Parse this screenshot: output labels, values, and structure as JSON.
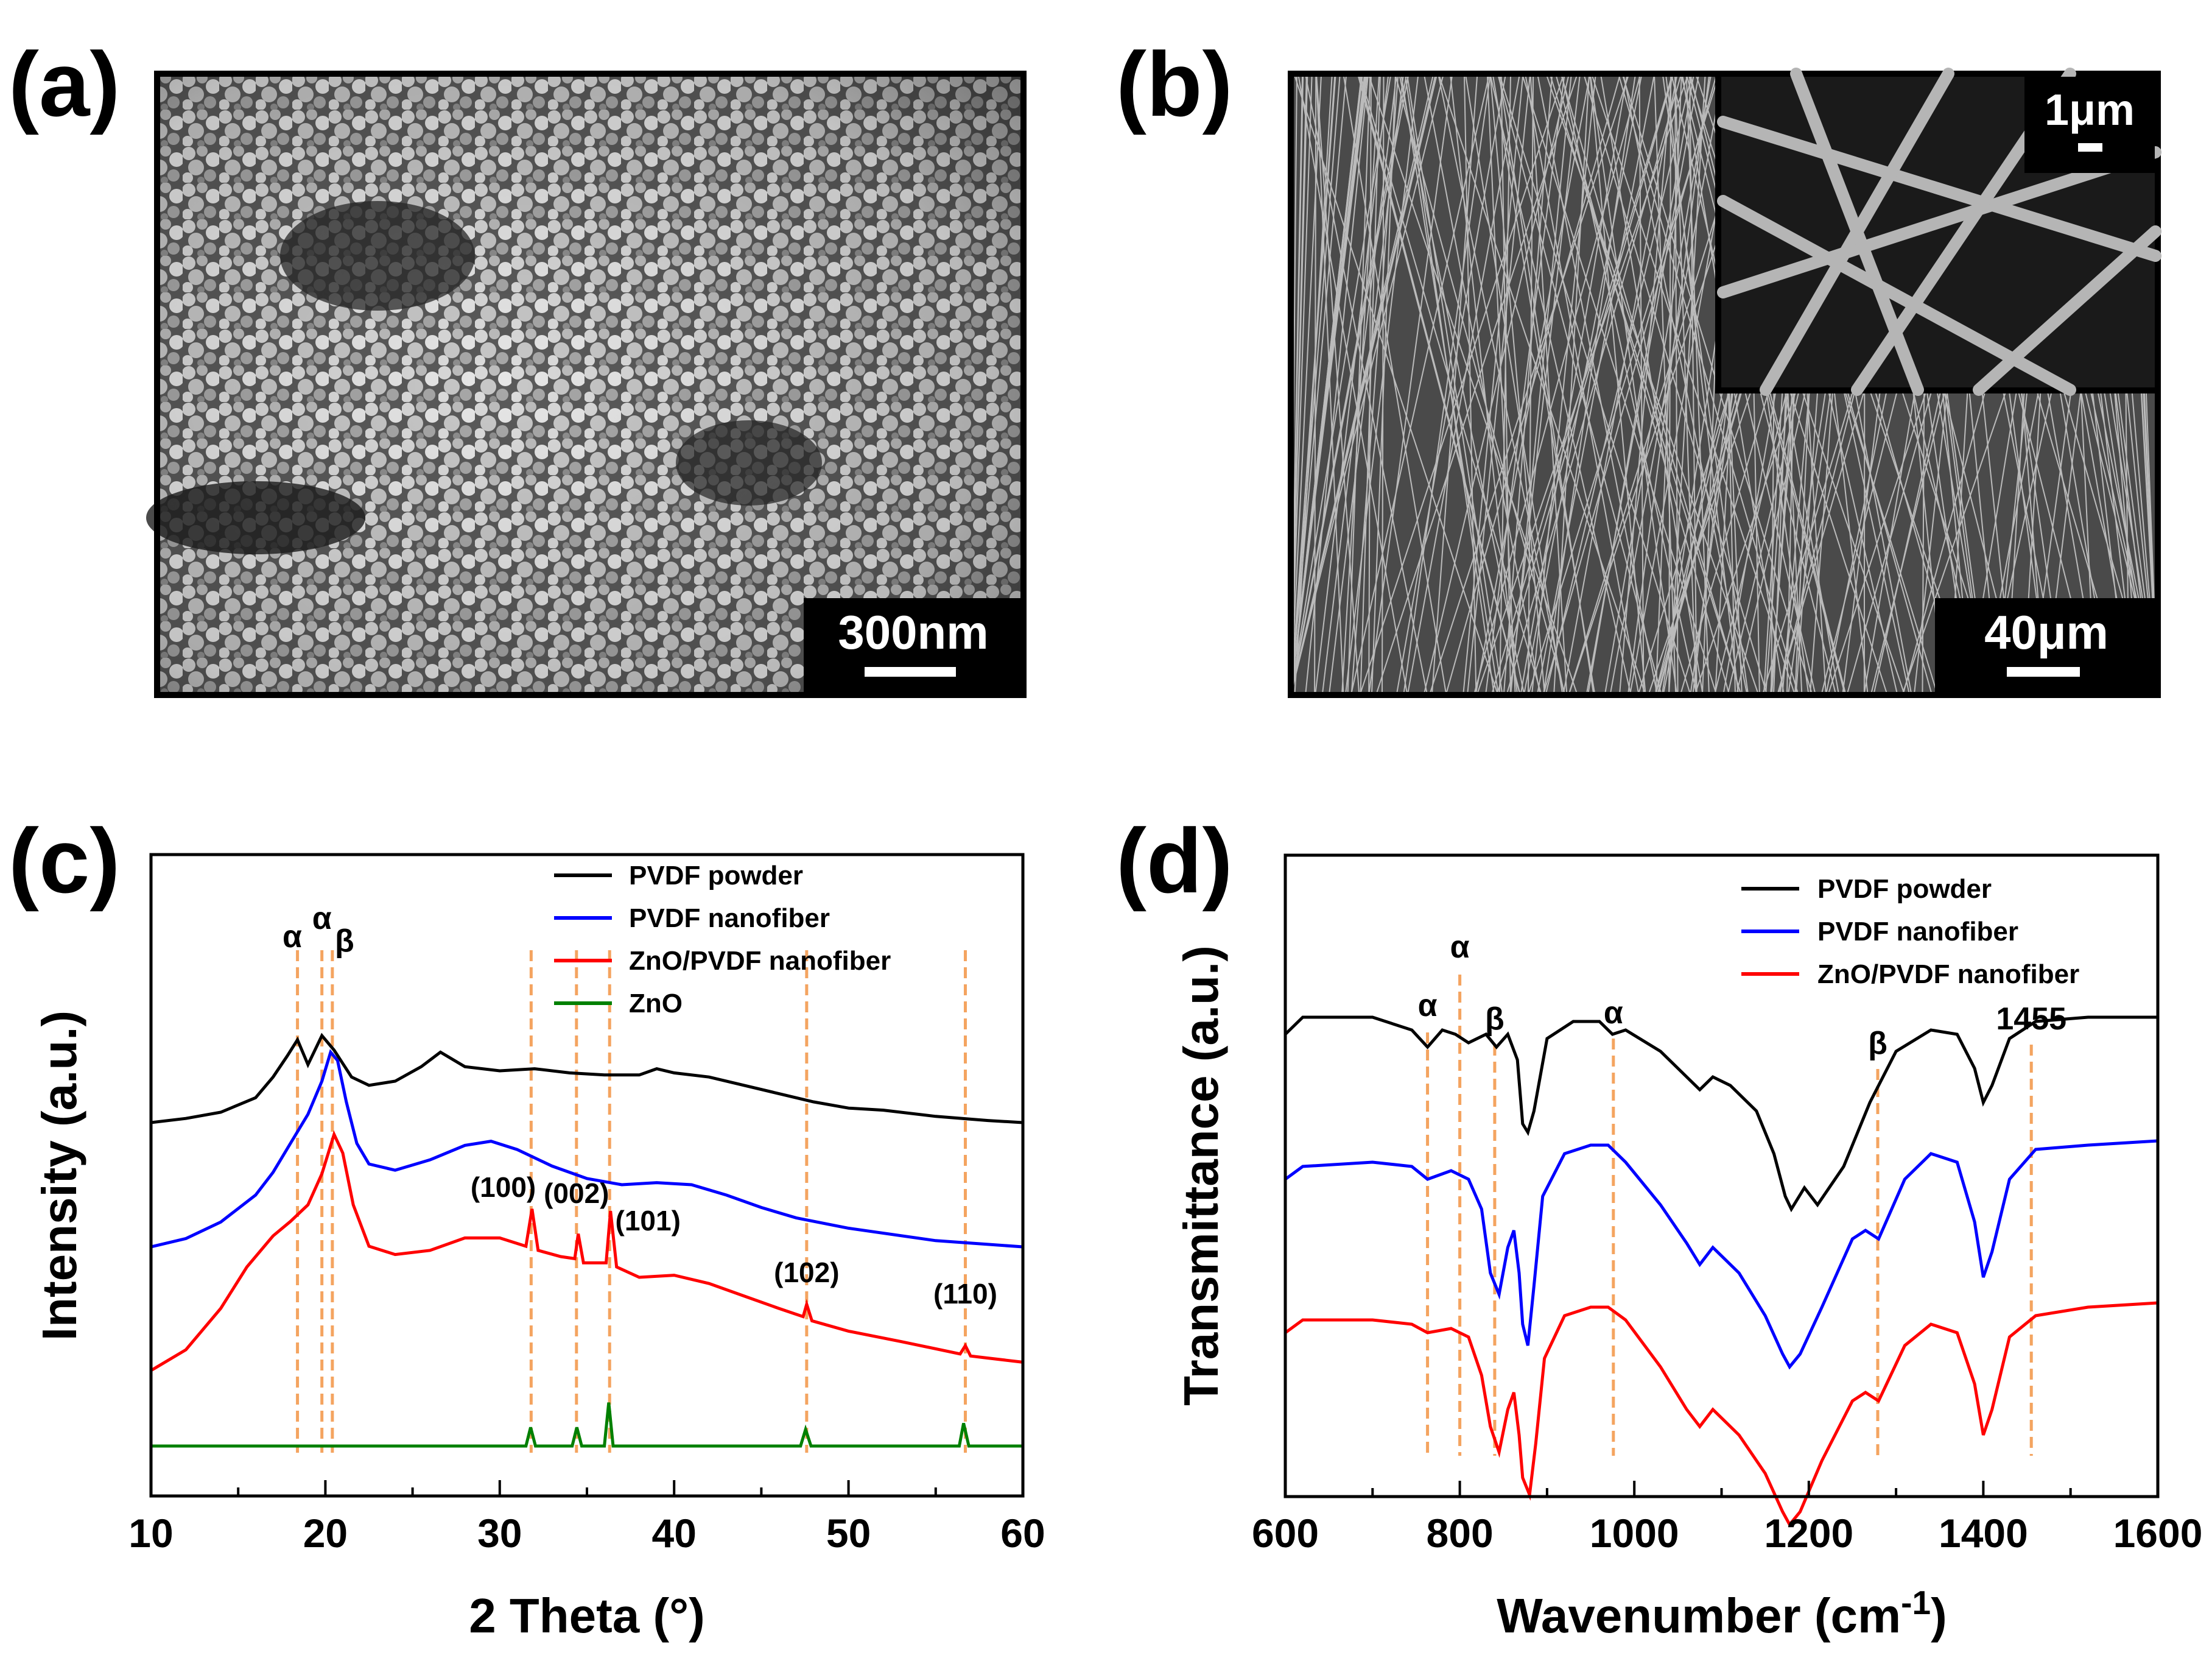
{
  "panels": {
    "a": {
      "label": "(a)",
      "scalebar": "300nm"
    },
    "b": {
      "label": "(b)",
      "scalebar": "40μm",
      "inset_scalebar": "1μm"
    },
    "c": {
      "label": "(c)"
    },
    "d": {
      "label": "(d)"
    }
  },
  "colors": {
    "black": "#000000",
    "blue": "#0000ff",
    "red": "#ff0000",
    "green": "#008000",
    "guide": "#f4a460"
  },
  "chart_data": [
    {
      "panel": "c",
      "type": "line",
      "xlabel": "2 Theta (°)",
      "ylabel": "Intensity (a.u.)",
      "xlim": [
        10,
        60
      ],
      "xticks": [
        10,
        20,
        30,
        40,
        50,
        60
      ],
      "xtick_labels": [
        "10",
        "20",
        "30",
        "40",
        "50",
        "60"
      ],
      "y_ticks_shown": false,
      "grid": false,
      "legend_position": "top-right",
      "series": [
        {
          "name": "PVDF powder",
          "color": "#000000",
          "x": [
            10,
            12,
            14,
            16,
            17,
            17.8,
            18.4,
            19.0,
            19.8,
            20.5,
            21.5,
            22.5,
            24,
            25.5,
            26.6,
            28,
            30,
            32,
            34,
            36,
            38,
            39,
            40,
            42,
            44,
            46,
            48,
            50,
            52,
            55,
            58,
            60
          ],
          "y": [
            0.0,
            0.02,
            0.05,
            0.12,
            0.22,
            0.32,
            0.4,
            0.28,
            0.42,
            0.35,
            0.22,
            0.18,
            0.2,
            0.27,
            0.34,
            0.27,
            0.25,
            0.26,
            0.24,
            0.23,
            0.23,
            0.26,
            0.24,
            0.22,
            0.18,
            0.14,
            0.1,
            0.07,
            0.06,
            0.03,
            0.01,
            0.0
          ]
        },
        {
          "name": "PVDF nanofiber",
          "color": "#0000ff",
          "x": [
            10,
            12,
            14,
            16,
            17,
            18,
            19,
            19.8,
            20.3,
            20.7,
            21.2,
            21.8,
            22.5,
            24,
            26,
            28,
            29.5,
            31,
            33,
            35,
            37,
            39,
            41,
            43,
            45,
            47,
            50,
            55,
            60
          ],
          "y": [
            0.0,
            0.04,
            0.12,
            0.25,
            0.36,
            0.5,
            0.64,
            0.8,
            0.94,
            0.9,
            0.7,
            0.5,
            0.4,
            0.37,
            0.42,
            0.49,
            0.51,
            0.47,
            0.39,
            0.33,
            0.3,
            0.31,
            0.3,
            0.25,
            0.19,
            0.14,
            0.09,
            0.03,
            0.0
          ]
        },
        {
          "name": "ZnO/PVDF nanofiber",
          "color": "#ff0000",
          "x": [
            10,
            12,
            14,
            15.5,
            17,
            18,
            19,
            19.8,
            20.5,
            21.0,
            21.6,
            22.5,
            24,
            26,
            28,
            30,
            31.5,
            31.85,
            32.2,
            33.5,
            34.3,
            34.5,
            34.8,
            35.5,
            36.1,
            36.35,
            36.7,
            38,
            40,
            42,
            44,
            46,
            47.4,
            47.6,
            47.9,
            50,
            53,
            56.4,
            56.7,
            57.0,
            58,
            60
          ],
          "y": [
            0.0,
            0.1,
            0.3,
            0.5,
            0.65,
            0.72,
            0.8,
            0.95,
            1.14,
            1.05,
            0.8,
            0.6,
            0.56,
            0.58,
            0.64,
            0.64,
            0.6,
            0.78,
            0.58,
            0.55,
            0.54,
            0.66,
            0.52,
            0.52,
            0.52,
            0.77,
            0.5,
            0.45,
            0.46,
            0.42,
            0.36,
            0.3,
            0.26,
            0.32,
            0.24,
            0.19,
            0.14,
            0.08,
            0.12,
            0.07,
            0.06,
            0.04
          ]
        },
        {
          "name": "ZnO",
          "color": "#008000",
          "x": [
            10,
            31.5,
            31.77,
            32.05,
            34.15,
            34.42,
            34.7,
            36.0,
            36.25,
            36.5,
            47.25,
            47.54,
            47.85,
            56.35,
            56.6,
            56.9,
            60
          ],
          "y": [
            0.0,
            0.0,
            0.09,
            0.0,
            0.0,
            0.09,
            0.0,
            0.0,
            0.21,
            0.0,
            0.0,
            0.08,
            0.0,
            0.0,
            0.11,
            0.0,
            0.0
          ]
        }
      ],
      "guides": [
        18.4,
        19.8,
        20.4,
        31.8,
        34.4,
        36.3,
        47.6,
        56.7
      ],
      "phase_labels": [
        {
          "text": "α",
          "x": 18.1
        },
        {
          "text": "α",
          "x": 19.8
        },
        {
          "text": "β",
          "x": 21.1
        }
      ],
      "peak_labels": [
        {
          "text": "(100)",
          "x": 30.2
        },
        {
          "text": "(002)",
          "x": 34.4
        },
        {
          "text": "(101)",
          "x": 38.5
        },
        {
          "text": "(102)",
          "x": 47.6
        },
        {
          "text": "(110)",
          "x": 56.7
        }
      ]
    },
    {
      "panel": "d",
      "type": "line",
      "xlabel": "Wavenumber (cm",
      "xlabel_superscript": "-1",
      "xlabel_end": ")",
      "ylabel": "Transmittance (a.u.)",
      "xlim": [
        600,
        1600
      ],
      "xticks": [
        600,
        700,
        800,
        900,
        1000,
        1100,
        1200,
        1300,
        1400,
        1500,
        1600
      ],
      "xtick_labels": [
        "600",
        "800",
        "1000",
        "1200",
        "1400",
        "1600"
      ],
      "y_ticks_shown": false,
      "grid": false,
      "legend_position": "top-right",
      "series": [
        {
          "name": "PVDF powder",
          "color": "#000000",
          "x": [
            600,
            620,
            700,
            745,
            763,
            780,
            795,
            810,
            830,
            842,
            855,
            866,
            872,
            878,
            885,
            900,
            930,
            960,
            975,
            990,
            1030,
            1060,
            1075,
            1090,
            1110,
            1140,
            1160,
            1173,
            1180,
            1195,
            1210,
            1240,
            1270,
            1300,
            1340,
            1370,
            1390,
            1400,
            1410,
            1430,
            1460,
            1520,
            1600
          ],
          "y": [
            0.86,
            0.9,
            0.9,
            0.87,
            0.83,
            0.87,
            0.86,
            0.84,
            0.86,
            0.83,
            0.86,
            0.8,
            0.65,
            0.63,
            0.68,
            0.85,
            0.89,
            0.89,
            0.86,
            0.87,
            0.82,
            0.76,
            0.73,
            0.76,
            0.74,
            0.68,
            0.58,
            0.48,
            0.45,
            0.5,
            0.46,
            0.55,
            0.7,
            0.82,
            0.87,
            0.86,
            0.78,
            0.7,
            0.74,
            0.85,
            0.89,
            0.9,
            0.9
          ]
        },
        {
          "name": "PVDF nanofiber",
          "color": "#0000ff",
          "x": [
            600,
            620,
            700,
            745,
            763,
            790,
            810,
            825,
            835,
            845,
            855,
            862,
            868,
            872,
            878,
            885,
            895,
            920,
            950,
            970,
            990,
            1030,
            1060,
            1075,
            1090,
            1120,
            1150,
            1170,
            1178,
            1190,
            1215,
            1250,
            1265,
            1280,
            1310,
            1340,
            1370,
            1390,
            1400,
            1410,
            1430,
            1460,
            1520,
            1600
          ],
          "y": [
            0.52,
            0.55,
            0.56,
            0.55,
            0.52,
            0.54,
            0.52,
            0.45,
            0.3,
            0.25,
            0.36,
            0.4,
            0.3,
            0.18,
            0.13,
            0.27,
            0.48,
            0.58,
            0.6,
            0.6,
            0.56,
            0.46,
            0.37,
            0.32,
            0.36,
            0.3,
            0.2,
            0.11,
            0.08,
            0.11,
            0.22,
            0.38,
            0.4,
            0.38,
            0.52,
            0.58,
            0.56,
            0.42,
            0.29,
            0.35,
            0.52,
            0.59,
            0.6,
            0.61
          ]
        },
        {
          "name": "ZnO/PVDF nanofiber",
          "color": "#ff0000",
          "x": [
            600,
            620,
            700,
            745,
            763,
            790,
            810,
            825,
            835,
            845,
            855,
            862,
            868,
            872,
            880,
            887,
            897,
            920,
            950,
            970,
            990,
            1030,
            1060,
            1075,
            1090,
            1120,
            1150,
            1170,
            1178,
            1190,
            1215,
            1250,
            1265,
            1280,
            1310,
            1340,
            1370,
            1390,
            1400,
            1410,
            1430,
            1460,
            1520,
            1600
          ],
          "y": [
            0.16,
            0.19,
            0.19,
            0.18,
            0.16,
            0.17,
            0.15,
            0.06,
            -0.06,
            -0.12,
            -0.02,
            0.02,
            -0.08,
            -0.18,
            -0.22,
            -0.1,
            0.1,
            0.2,
            0.22,
            0.22,
            0.19,
            0.08,
            -0.02,
            -0.06,
            -0.02,
            -0.08,
            -0.17,
            -0.26,
            -0.29,
            -0.26,
            -0.14,
            0.0,
            0.02,
            0.0,
            0.13,
            0.18,
            0.16,
            0.04,
            -0.08,
            -0.02,
            0.15,
            0.2,
            0.22,
            0.23
          ]
        }
      ],
      "guides": [
        763,
        800,
        840,
        976,
        1279,
        1455
      ],
      "phase_labels": [
        {
          "text": "α",
          "x": 763
        },
        {
          "text": "α",
          "x": 800
        },
        {
          "text": "β",
          "x": 840
        },
        {
          "text": "α",
          "x": 976
        },
        {
          "text": "β",
          "x": 1279
        },
        {
          "text": "1455",
          "x": 1455
        }
      ]
    }
  ]
}
